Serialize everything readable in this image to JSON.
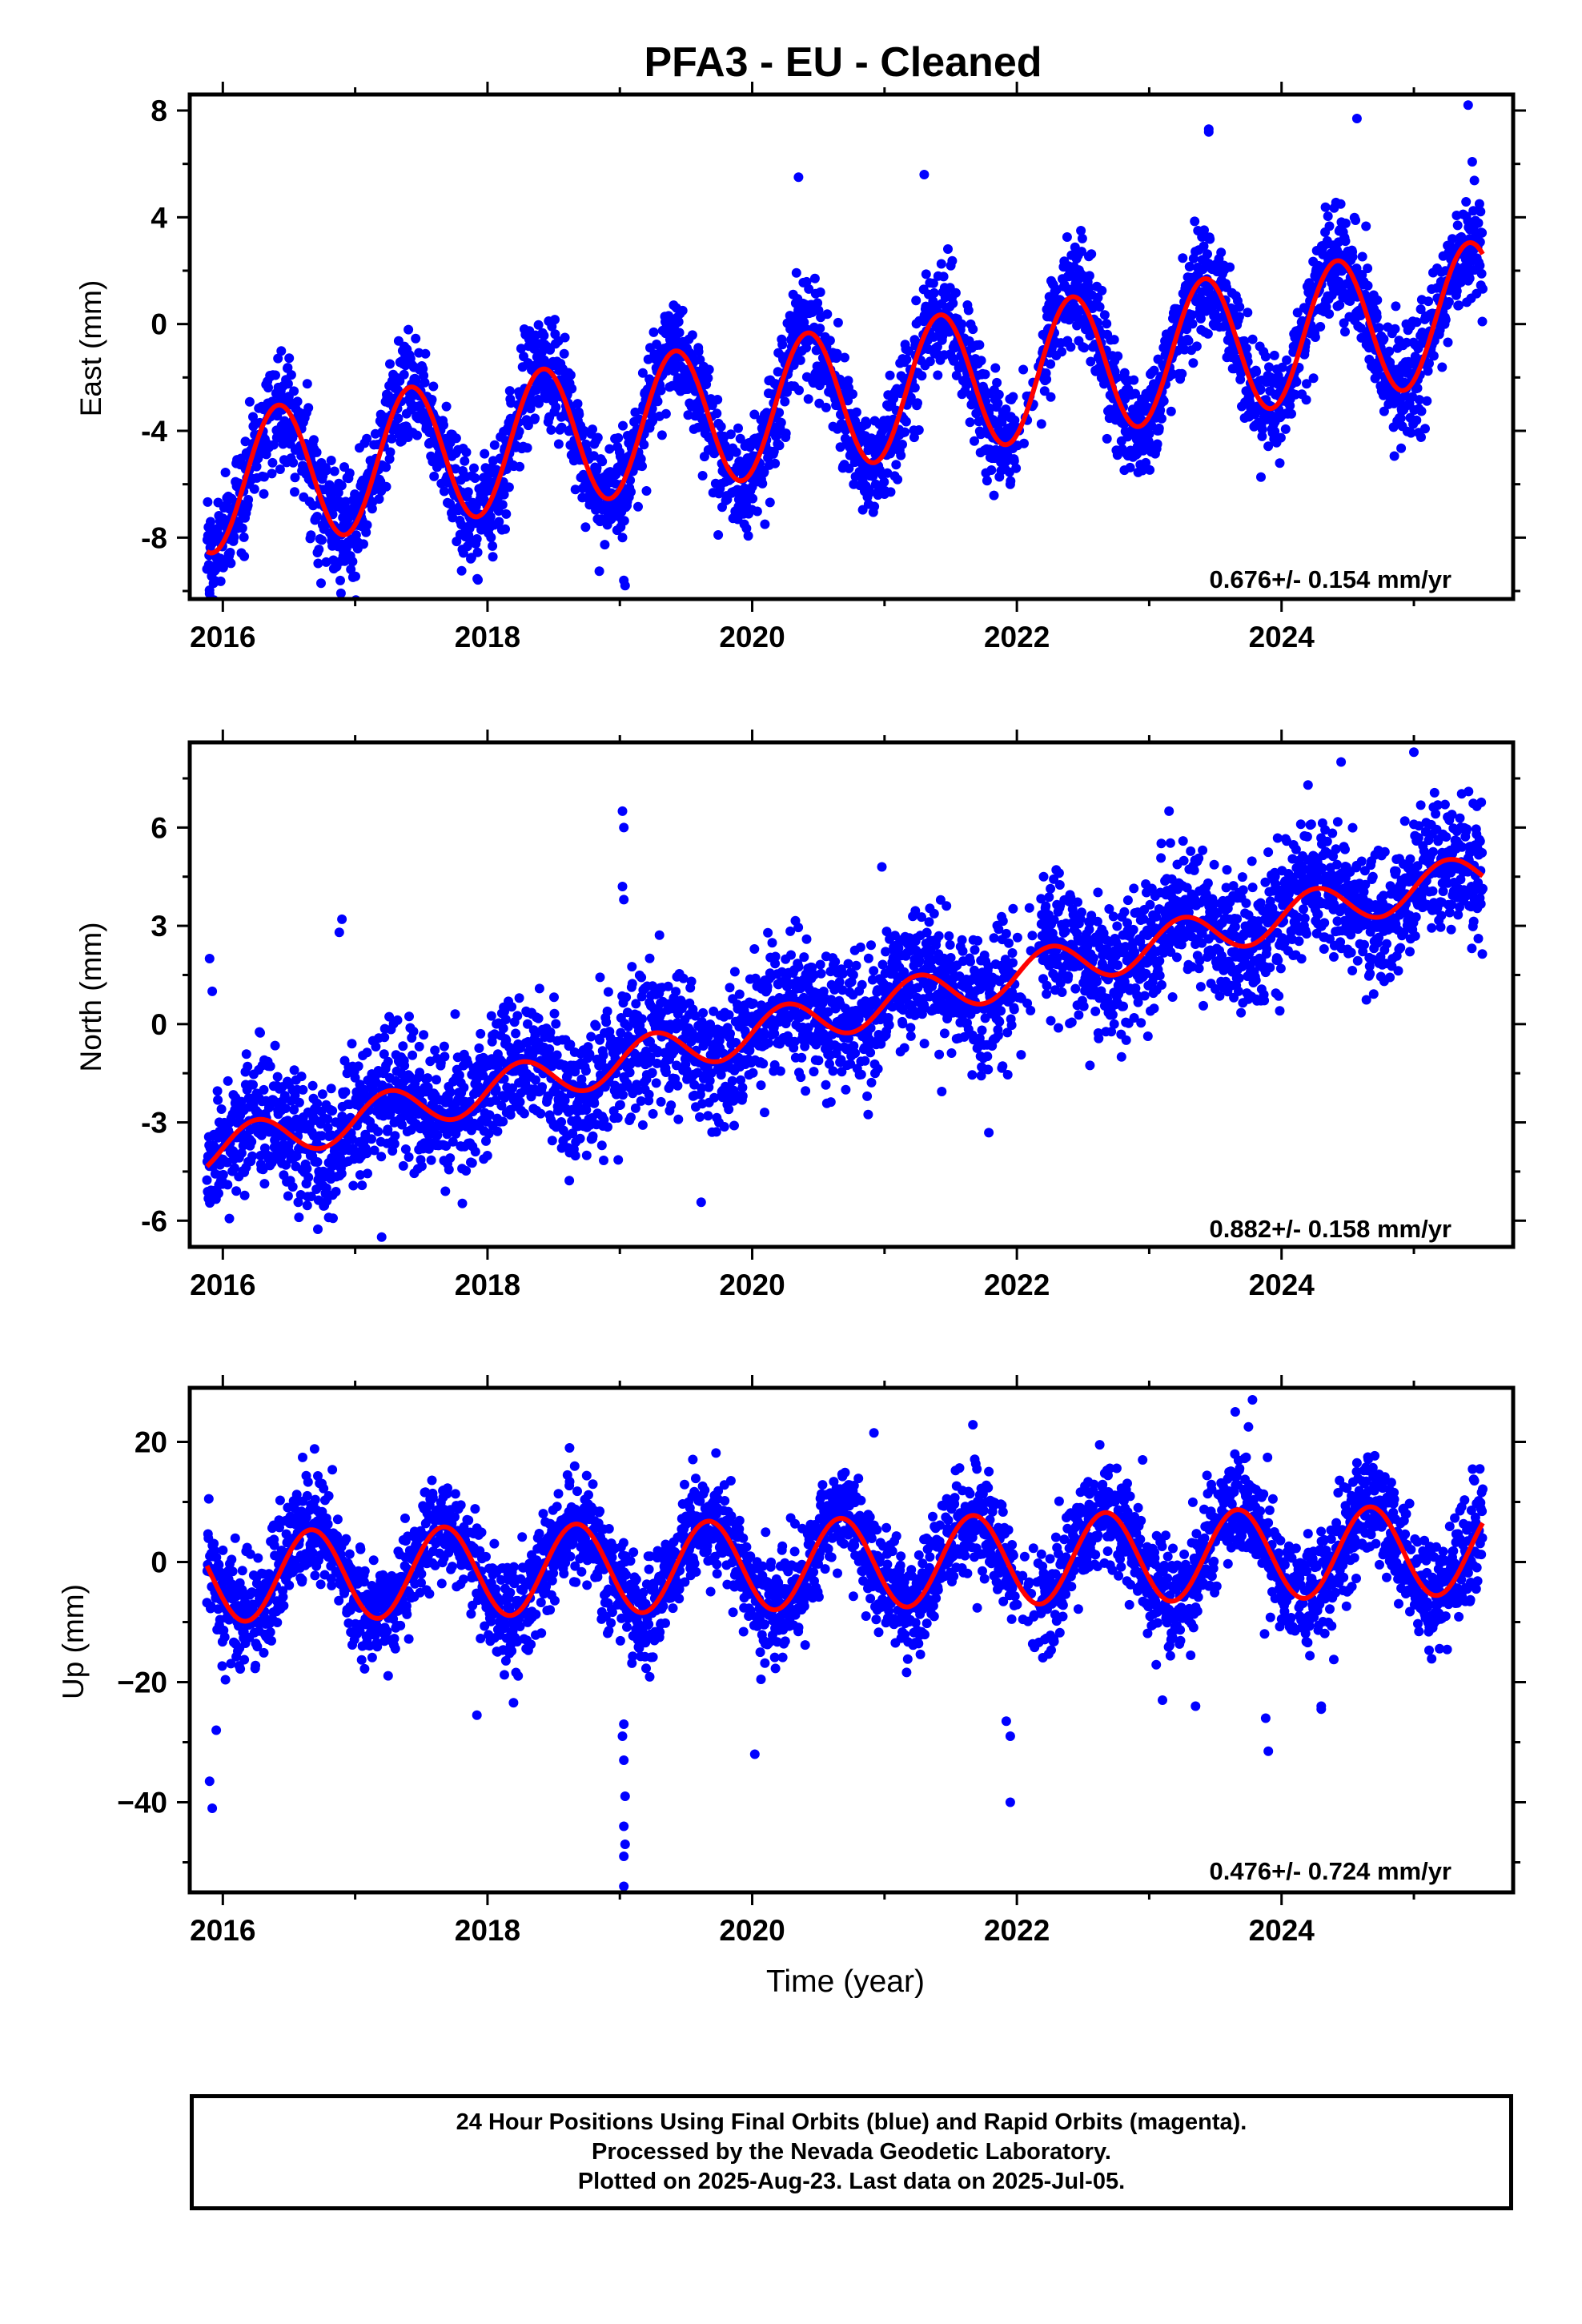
{
  "title": "PFA3  - EU - Cleaned",
  "colors": {
    "points": "#0000ff",
    "fit": "#ff0000",
    "frame": "#000000"
  },
  "xlabel": "Time (year)",
  "footer": {
    "line1": "24 Hour Positions Using Final Orbits (blue) and Rapid Orbits (magenta).",
    "line2": "Processed by the Nevada Geodetic Laboratory.",
    "line3": "Plotted on 2025-Aug-23. Last data on 2025-Jul-05."
  },
  "chart_data": [
    {
      "type": "scatter",
      "ylabel": "East (mm)",
      "xlim": [
        2015.75,
        2025.75
      ],
      "ylim": [
        -10.3,
        8.6
      ],
      "xticks": [
        2016,
        2018,
        2020,
        2022,
        2024
      ],
      "yticks": [
        -8,
        -4,
        0,
        4,
        8
      ],
      "ytick_labels": [
        "-8",
        "-4",
        "0",
        "4",
        "8"
      ],
      "annotation": "0.676+/- 0.154 mm/yr",
      "fit": {
        "start": 2015.88,
        "end": 2025.52,
        "y0": -6.0,
        "slope": 0.676,
        "amplitude": 2.6,
        "peak_phase": 0.42
      },
      "scatter_noise": 1.0,
      "outliers": [
        [
          2015.9,
          -10.1
        ],
        [
          2015.93,
          -9.2
        ],
        [
          2016.05,
          -8.9
        ],
        [
          2019.03,
          -9.6
        ],
        [
          2019.04,
          -9.8
        ],
        [
          2019.02,
          -8.0
        ],
        [
          2019.02,
          -7.4
        ],
        [
          2024.57,
          7.7
        ],
        [
          2025.41,
          8.2
        ],
        [
          2025.02,
          -3.6
        ],
        [
          2021.95,
          -6.0
        ],
        [
          2023.45,
          7.3
        ],
        [
          2023.45,
          7.2
        ],
        [
          2021.3,
          5.6
        ],
        [
          2020.35,
          5.5
        ]
      ]
    },
    {
      "type": "scatter",
      "ylabel": "North (mm)",
      "xlim": [
        2015.75,
        2025.75
      ],
      "ylim": [
        -6.8,
        8.6
      ],
      "xticks": [
        2016,
        2018,
        2020,
        2022,
        2024
      ],
      "yticks": [
        -6,
        -3,
        0,
        3,
        6
      ],
      "ytick_labels": [
        "-6",
        "-3",
        "0",
        "3",
        "6"
      ],
      "annotation": "0.882+/- 0.158 mm/yr",
      "fit": {
        "start": 2015.88,
        "end": 2025.52,
        "y0": -3.9,
        "slope": 0.882,
        "amplitude": 0.65,
        "peak_phase": 0.25
      },
      "scatter_noise": 1.0,
      "outliers": [
        [
          2015.9,
          2.0
        ],
        [
          2015.92,
          1.0
        ],
        [
          2016.9,
          3.2
        ],
        [
          2016.88,
          2.8
        ],
        [
          2019.02,
          6.5
        ],
        [
          2019.03,
          6.0
        ],
        [
          2019.02,
          4.2
        ],
        [
          2019.03,
          3.8
        ],
        [
          2016.8,
          -5.9
        ],
        [
          2017.2,
          -6.5
        ],
        [
          2025.0,
          8.3
        ],
        [
          2024.45,
          8.0
        ],
        [
          2023.15,
          6.5
        ],
        [
          2024.2,
          7.3
        ],
        [
          2020.98,
          4.8
        ]
      ]
    },
    {
      "type": "scatter",
      "ylabel": "Up (mm)",
      "xlim": [
        2015.75,
        2025.75
      ],
      "ylim": [
        -55,
        29
      ],
      "xticks": [
        2016,
        2018,
        2020,
        2022,
        2024
      ],
      "yticks": [
        -40,
        -20,
        0,
        20
      ],
      "ytick_labels": [
        "−40",
        "−20",
        "0",
        "20"
      ],
      "annotation": "0.476+/- 0.724 mm/yr",
      "fit": {
        "start": 2015.88,
        "end": 2025.52,
        "y0": -2.5,
        "slope": 0.476,
        "amplitude": 7.5,
        "peak_phase": 0.67
      },
      "scatter_noise": 4.5,
      "outliers": [
        [
          2015.92,
          -41.0
        ],
        [
          2015.9,
          -36.5
        ],
        [
          2015.95,
          -28.0
        ],
        [
          2019.03,
          -54.0
        ],
        [
          2019.03,
          -49.0
        ],
        [
          2019.04,
          -47.0
        ],
        [
          2019.03,
          -44.0
        ],
        [
          2019.04,
          -39.0
        ],
        [
          2019.03,
          -33.0
        ],
        [
          2019.02,
          -29.0
        ],
        [
          2019.03,
          -27.0
        ],
        [
          2021.95,
          -40.0
        ],
        [
          2021.95,
          -29.0
        ],
        [
          2021.92,
          -26.5
        ],
        [
          2023.65,
          25.0
        ],
        [
          2023.78,
          27.0
        ],
        [
          2023.75,
          22.5
        ],
        [
          2023.9,
          -31.5
        ],
        [
          2023.88,
          -26.0
        ],
        [
          2024.3,
          -24.5
        ],
        [
          2024.3,
          -24.0
        ],
        [
          2020.92,
          21.5
        ],
        [
          2020.02,
          -32.0
        ],
        [
          2023.1,
          -23.0
        ],
        [
          2023.35,
          -24.0
        ],
        [
          2018.62,
          19.0
        ],
        [
          2017.92,
          -25.5
        ],
        [
          2022.95,
          17.0
        ]
      ]
    }
  ]
}
